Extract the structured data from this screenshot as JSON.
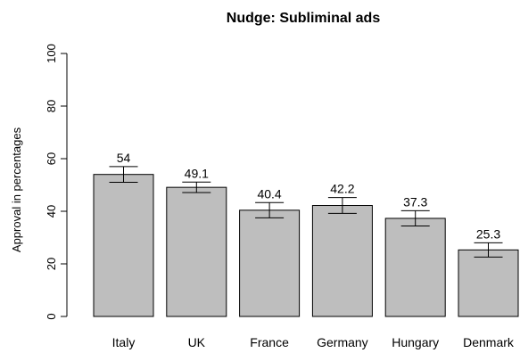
{
  "chart_data": {
    "type": "bar",
    "title": "Nudge: Subliminal ads",
    "xlabel": "",
    "ylabel": "Approval in percentages",
    "ylim": [
      0,
      100
    ],
    "yticks": [
      0,
      20,
      40,
      60,
      80,
      100
    ],
    "categories": [
      "Italy",
      "UK",
      "France",
      "Germany",
      "Hungary",
      "Denmark"
    ],
    "values": [
      54,
      49.1,
      40.4,
      42.2,
      37.3,
      25.3
    ],
    "value_labels": [
      "54",
      "49.1",
      "40.4",
      "42.2",
      "37.3",
      "25.3"
    ],
    "error_low": [
      51,
      47.1,
      37.5,
      39.2,
      34.4,
      22.6
    ],
    "error_high": [
      57,
      51.1,
      43.3,
      45.2,
      40.2,
      28.0
    ],
    "colors": {
      "bar_fill": "#bebebe",
      "bar_stroke": "#000000"
    },
    "grid": false
  }
}
